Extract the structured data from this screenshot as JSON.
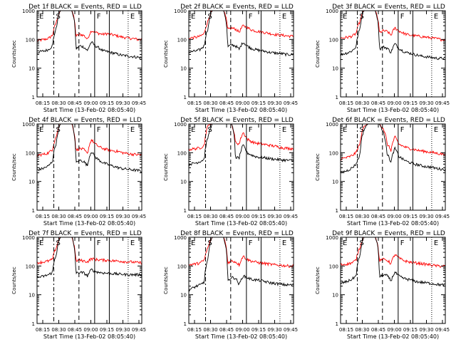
{
  "shared": {
    "ylabel": "Counts/sec",
    "xlabel": "Start Time (13-Feb-02 08:05:40)",
    "xtick_labels": [
      "08:15",
      "08:30",
      "08:45",
      "09:00",
      "09:15",
      "09:30",
      "09:45"
    ],
    "ytick_labels": [
      "1",
      "10",
      "100",
      "1000"
    ],
    "event_letters": [
      "E",
      "S",
      "F",
      "E"
    ],
    "colors": {
      "events": "#000000",
      "lld": "#ff0000",
      "axes": "#000000"
    }
  },
  "chart_data": [
    {
      "type": "line",
      "title": "Det 1f BLACK = Events, RED = LLD",
      "scale_y": "log",
      "ylim": [
        1,
        1000
      ],
      "series": [
        {
          "color": "#ff0000",
          "values": [
            90,
            95,
            100,
            110,
            140,
            400,
            1000,
            1000,
            1000,
            1000,
            130,
            150,
            140,
            100,
            200,
            180,
            160,
            150,
            160,
            150,
            140,
            130,
            120,
            115,
            110,
            105,
            100,
            100
          ]
        },
        {
          "color": "#000000",
          "values": [
            35,
            38,
            40,
            45,
            60,
            250,
            1000,
            1000,
            1000,
            1000,
            45,
            60,
            55,
            40,
            80,
            60,
            50,
            40,
            38,
            35,
            33,
            30,
            28,
            27,
            26,
            25,
            24,
            23
          ]
        }
      ]
    },
    {
      "type": "line",
      "title": "Det 2f BLACK = Events, RED = LLD",
      "scale_y": "log",
      "ylim": [
        1,
        1000
      ],
      "series": [
        {
          "color": "#ff0000",
          "values": [
            110,
            115,
            120,
            130,
            160,
            450,
            1000,
            1000,
            1000,
            1000,
            220,
            250,
            230,
            180,
            300,
            260,
            220,
            200,
            190,
            180,
            170,
            160,
            150,
            145,
            140,
            135,
            130,
            130
          ]
        },
        {
          "color": "#000000",
          "values": [
            35,
            38,
            40,
            45,
            60,
            250,
            1000,
            1000,
            1000,
            1000,
            55,
            65,
            60,
            45,
            80,
            60,
            50,
            45,
            42,
            40,
            38,
            35,
            34,
            33,
            32,
            30,
            30,
            30
          ]
        }
      ]
    },
    {
      "type": "line",
      "title": "Det 3f BLACK = Events, RED = LLD",
      "scale_y": "log",
      "ylim": [
        1,
        1000
      ],
      "series": [
        {
          "color": "#ff0000",
          "values": [
            110,
            115,
            120,
            130,
            160,
            420,
            1000,
            1000,
            1000,
            1000,
            170,
            200,
            190,
            140,
            250,
            200,
            170,
            150,
            140,
            135,
            130,
            125,
            120,
            115,
            110,
            105,
            100,
            100
          ]
        },
        {
          "color": "#000000",
          "values": [
            30,
            32,
            35,
            40,
            55,
            230,
            1000,
            1000,
            1000,
            1000,
            45,
            55,
            50,
            35,
            70,
            50,
            40,
            35,
            33,
            30,
            28,
            26,
            25,
            24,
            23,
            22,
            22,
            22
          ]
        }
      ]
    },
    {
      "type": "line",
      "title": "Det 4f BLACK = Events, RED = LLD",
      "scale_y": "log",
      "ylim": [
        1,
        1000
      ],
      "series": [
        {
          "color": "#ff0000",
          "values": [
            80,
            85,
            90,
            100,
            130,
            380,
            1000,
            1000,
            1000,
            1000,
            120,
            140,
            130,
            90,
            280,
            200,
            160,
            140,
            130,
            120,
            115,
            110,
            100,
            95,
            90,
            88,
            85,
            85
          ]
        },
        {
          "color": "#000000",
          "values": [
            25,
            27,
            30,
            35,
            50,
            220,
            1000,
            1000,
            1000,
            1000,
            45,
            55,
            50,
            35,
            110,
            70,
            55,
            45,
            40,
            36,
            33,
            30,
            28,
            27,
            26,
            25,
            24,
            23
          ]
        }
      ]
    },
    {
      "type": "line",
      "title": "Det 5f BLACK = Events, RED = LLD",
      "scale_y": "log",
      "ylim": [
        1,
        1000
      ],
      "series": [
        {
          "color": "#ff0000",
          "values": [
            130,
            135,
            140,
            150,
            180,
            900,
            1000,
            1000,
            1000,
            1000,
            1000,
            1000,
            230,
            200,
            500,
            300,
            250,
            220,
            210,
            200,
            190,
            180,
            170,
            160,
            150,
            145,
            140,
            140
          ]
        },
        {
          "color": "#000000",
          "values": [
            40,
            42,
            45,
            50,
            60,
            350,
            1000,
            1000,
            1000,
            1000,
            1000,
            1000,
            70,
            65,
            180,
            100,
            85,
            75,
            70,
            68,
            65,
            62,
            60,
            58,
            56,
            55,
            54,
            53
          ]
        }
      ]
    },
    {
      "type": "line",
      "title": "Det 6f BLACK = Events, RED = LLD",
      "scale_y": "log",
      "ylim": [
        1,
        1000
      ],
      "series": [
        {
          "color": "#ff0000",
          "values": [
            60,
            65,
            70,
            80,
            100,
            200,
            800,
            1000,
            1000,
            1000,
            1000,
            700,
            200,
            120,
            350,
            200,
            170,
            150,
            140,
            130,
            120,
            115,
            110,
            105,
            100,
            95,
            90,
            90
          ]
        },
        {
          "color": "#000000",
          "values": [
            20,
            22,
            25,
            30,
            40,
            80,
            600,
            1000,
            1000,
            1000,
            1000,
            500,
            90,
            45,
            140,
            75,
            60,
            50,
            45,
            40,
            38,
            35,
            33,
            32,
            30,
            28,
            27,
            26
          ]
        }
      ]
    },
    {
      "type": "line",
      "title": "Det 7f BLACK = Events, RED = LLD",
      "scale_y": "log",
      "ylim": [
        1,
        1000
      ],
      "series": [
        {
          "color": "#ff0000",
          "values": [
            130,
            135,
            140,
            150,
            170,
            450,
            1000,
            1000,
            1000,
            1000,
            150,
            160,
            150,
            140,
            180,
            170,
            165,
            160,
            160,
            155,
            150,
            150,
            145,
            140,
            140,
            135,
            130,
            130
          ]
        },
        {
          "color": "#000000",
          "values": [
            40,
            42,
            45,
            50,
            60,
            260,
            1000,
            1000,
            1000,
            1000,
            55,
            60,
            58,
            45,
            75,
            65,
            60,
            58,
            56,
            55,
            54,
            52,
            52,
            50,
            50,
            50,
            50,
            50
          ]
        }
      ]
    },
    {
      "type": "line",
      "title": "Det 8f BLACK = Events, RED = LLD",
      "scale_y": "log",
      "ylim": [
        1,
        1000
      ],
      "series": [
        {
          "color": "#ff0000",
          "values": [
            110,
            115,
            120,
            130,
            160,
            450,
            1000,
            1000,
            1000,
            1000,
            130,
            150,
            140,
            110,
            220,
            170,
            150,
            140,
            130,
            125,
            120,
            115,
            110,
            108,
            105,
            102,
            100,
            100
          ]
        },
        {
          "color": "#000000",
          "values": [
            15,
            17,
            20,
            22,
            28,
            180,
            1000,
            1000,
            1000,
            1000,
            30,
            40,
            38,
            22,
            45,
            40,
            35,
            33,
            32,
            30,
            28,
            26,
            25,
            24,
            23,
            22,
            22,
            22
          ]
        }
      ]
    },
    {
      "type": "line",
      "title": "Det 9f BLACK = Events, RED = LLD",
      "scale_y": "log",
      "ylim": [
        1,
        1000
      ],
      "series": [
        {
          "color": "#ff0000",
          "values": [
            110,
            115,
            120,
            130,
            160,
            450,
            1000,
            1000,
            1000,
            1000,
            150,
            170,
            160,
            120,
            250,
            190,
            160,
            145,
            135,
            130,
            125,
            120,
            115,
            110,
            105,
            100,
            100,
            100
          ]
        },
        {
          "color": "#000000",
          "values": [
            25,
            27,
            30,
            35,
            45,
            220,
            1000,
            1000,
            1000,
            1000,
            40,
            50,
            46,
            30,
            60,
            45,
            38,
            35,
            33,
            30,
            28,
            27,
            26,
            25,
            24,
            23,
            22,
            22
          ]
        }
      ]
    }
  ]
}
